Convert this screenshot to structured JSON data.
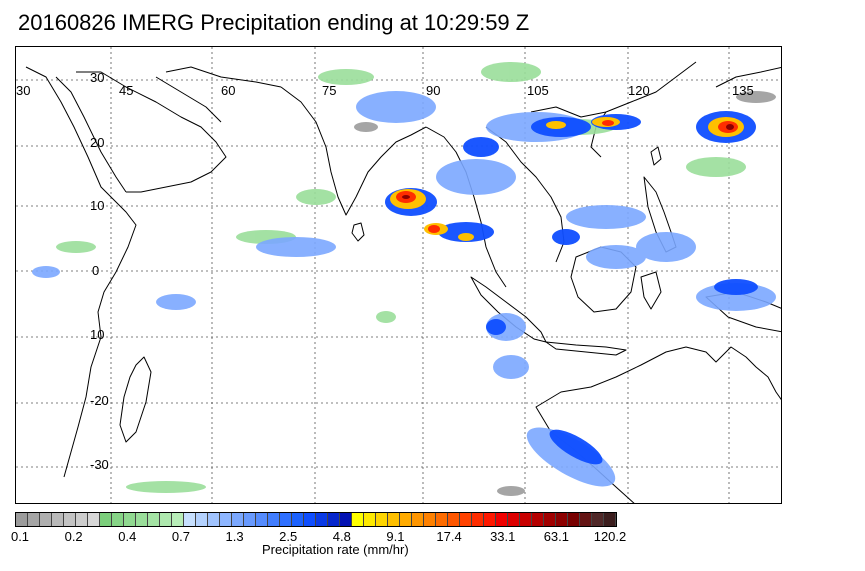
{
  "title": "20160826 IMERG Precipitation ending at 10:29:59 Z",
  "map": {
    "lon_labels": [
      "30",
      "45",
      "60",
      "75",
      "90",
      "105",
      "120",
      "135"
    ],
    "lat_labels": [
      "30",
      "20",
      "10",
      "0",
      "10",
      "-20",
      "-30"
    ],
    "coastline_color": "#000000",
    "grid_color": "#555555"
  },
  "colorbar": {
    "colors": [
      "#9b9b9b",
      "#a5a5a5",
      "#afafaf",
      "#b9b9b9",
      "#c3c3c3",
      "#cdcdcd",
      "#d7d7d7",
      "#7ccf7c",
      "#86d486",
      "#90d990",
      "#9ade9a",
      "#a4e3a4",
      "#aee8ae",
      "#b8edb8",
      "#c7e0ff",
      "#b4d2ff",
      "#a1c4ff",
      "#8eb6ff",
      "#7ba8ff",
      "#689aff",
      "#558cff",
      "#427eff",
      "#2f70ff",
      "#1c62ff",
      "#0f4eff",
      "#0a3ae6",
      "#0626cc",
      "#0312b3",
      "#ffff00",
      "#ffea00",
      "#ffd500",
      "#ffc000",
      "#ffab00",
      "#ff9600",
      "#ff8100",
      "#ff6c00",
      "#ff5700",
      "#ff4200",
      "#ff2d00",
      "#ff1800",
      "#f00000",
      "#dc0000",
      "#c80000",
      "#b40000",
      "#a00000",
      "#8c0000",
      "#780000",
      "#641414",
      "#502828",
      "#3c1e1e"
    ],
    "tick_labels": [
      "0.1",
      "0.2",
      "0.4",
      "0.7",
      "1.3",
      "2.5",
      "4.8",
      "9.1",
      "17.4",
      "33.1",
      "63.1",
      "120.2"
    ],
    "unit_label": "Precipitation rate (mm/hr)"
  }
}
